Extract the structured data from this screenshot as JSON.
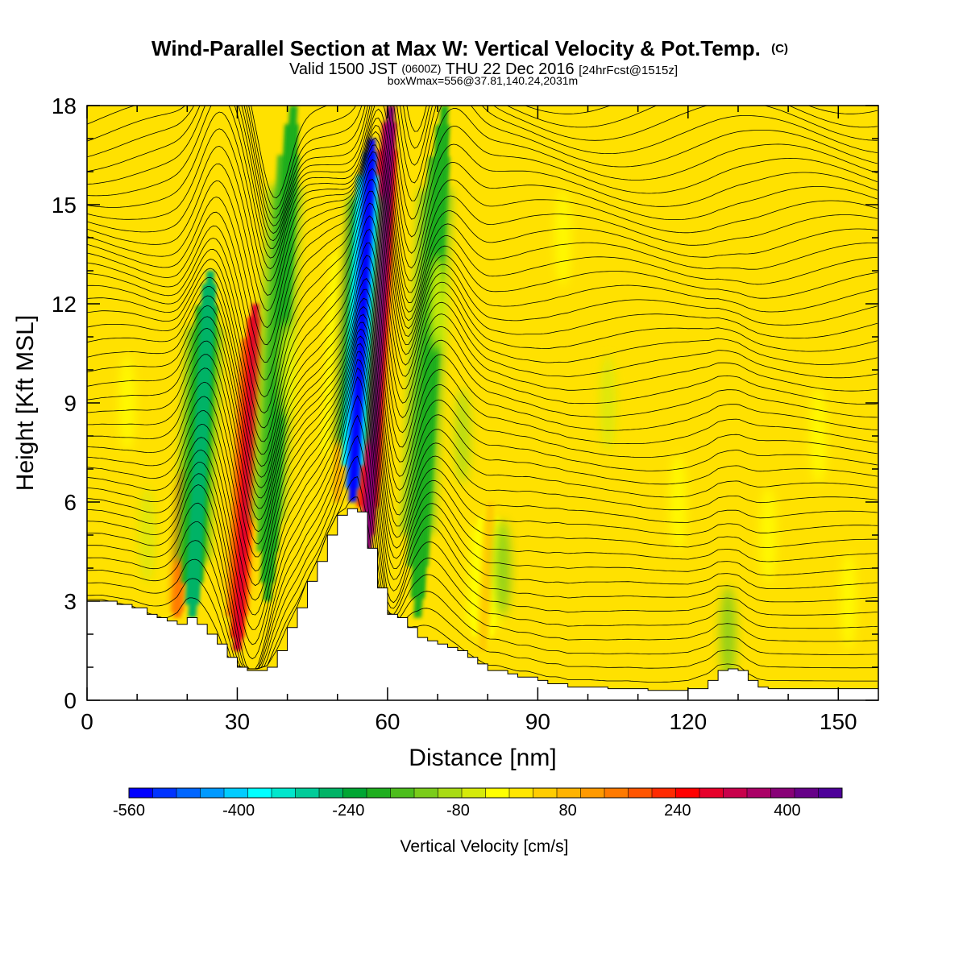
{
  "chart_data": {
    "type": "heatmap",
    "title": "Wind-Parallel Section at Max W: Vertical Velocity & Pot.Temp.",
    "title_mark": "(C)",
    "subtitle": {
      "prefix": "Valid 1500 JST",
      "utc": "(0600Z)",
      "date": "THU 22 Dec 2016",
      "forecast": "[24hrFcst@1515z]"
    },
    "box_info": "boxWmax=556@37.81,140.24,2031m",
    "xlabel": "Distance [nm]",
    "ylabel": "Height [Kft MSL]",
    "xlim": [
      0,
      158
    ],
    "ylim": [
      0,
      18
    ],
    "x_ticks": [
      0,
      30,
      60,
      90,
      120,
      150
    ],
    "y_ticks": [
      0,
      3,
      6,
      9,
      12,
      15,
      18
    ],
    "colorbar": {
      "label": "Vertical Velocity [cm/s]",
      "min": -560,
      "max": 480,
      "step": 40,
      "tick_values": [
        -560,
        -400,
        -240,
        -80,
        80,
        240,
        400
      ],
      "tick_labels": [
        "-560",
        "-400",
        "-240",
        "-80",
        "80",
        "240",
        "400"
      ],
      "colors": [
        "#0000ff",
        "#0033ff",
        "#0066ff",
        "#0099ff",
        "#00ccff",
        "#00ffff",
        "#00e6cc",
        "#00cc99",
        "#00b366",
        "#00a633",
        "#1fae1f",
        "#4cbd1c",
        "#7acc1a",
        "#a8db14",
        "#d5ea0a",
        "#ffff00",
        "#ffe600",
        "#ffcc00",
        "#ffb300",
        "#ff9900",
        "#ff7a00",
        "#ff5500",
        "#ff2a00",
        "#ff0000",
        "#e6002a",
        "#c8004b",
        "#aa0066",
        "#880077",
        "#660088",
        "#4d0099"
      ]
    },
    "features": {
      "terrain_x": [
        0,
        3,
        6,
        9,
        12,
        14,
        16,
        18,
        20,
        22,
        24,
        26,
        28,
        30,
        32,
        34,
        36,
        38,
        40,
        42,
        44,
        46,
        48,
        50,
        52,
        54,
        56,
        58,
        60,
        62,
        64,
        66,
        68,
        70,
        72,
        74,
        76,
        78,
        80,
        82,
        84,
        86,
        88,
        90,
        92,
        94,
        96,
        98,
        100,
        104,
        108,
        112,
        116,
        120,
        124,
        126,
        128,
        130,
        132,
        134,
        136,
        140,
        144,
        148,
        152,
        156,
        158
      ],
      "terrain_y": [
        3.0,
        3.0,
        2.9,
        2.8,
        2.6,
        2.5,
        2.4,
        2.3,
        2.5,
        2.3,
        2.0,
        1.7,
        1.3,
        1.0,
        0.9,
        0.9,
        1.0,
        1.5,
        2.2,
        2.8,
        3.6,
        4.2,
        5.0,
        5.6,
        5.8,
        5.7,
        4.6,
        3.4,
        2.6,
        2.5,
        2.2,
        1.9,
        1.8,
        1.7,
        1.6,
        1.5,
        1.3,
        1.1,
        0.9,
        0.9,
        0.8,
        0.7,
        0.7,
        0.6,
        0.5,
        0.5,
        0.4,
        0.4,
        0.4,
        0.35,
        0.35,
        0.3,
        0.3,
        0.35,
        0.6,
        0.9,
        0.95,
        0.9,
        0.6,
        0.4,
        0.35,
        0.35,
        0.35,
        0.35,
        0.35,
        0.35,
        0.35
      ],
      "updrafts": [
        {
          "x": 30,
          "z_bottom": 1.5,
          "z_top": 12,
          "peak_cms": 400
        },
        {
          "x": 56,
          "z_bottom": 4.5,
          "z_top": 18,
          "peak_cms": 556
        },
        {
          "x": 18,
          "z_bottom": 2.5,
          "z_top": 7,
          "peak_cms": 240
        },
        {
          "x": 50,
          "z_bottom": 6,
          "z_top": 15,
          "peak_cms": 160
        },
        {
          "x": 79,
          "z_bottom": 1.5,
          "z_top": 6,
          "peak_cms": 120
        }
      ],
      "downdrafts": [
        {
          "x": 53,
          "z_bottom": 6,
          "z_top": 17,
          "peak_cms": -560
        },
        {
          "x": 21,
          "z_bottom": 2.5,
          "z_top": 13,
          "peak_cms": -240
        },
        {
          "x": 36,
          "z_bottom": 3,
          "z_top": 18,
          "peak_cms": -160
        },
        {
          "x": 66,
          "z_bottom": 2.5,
          "z_top": 18,
          "peak_cms": -160
        }
      ]
    }
  }
}
